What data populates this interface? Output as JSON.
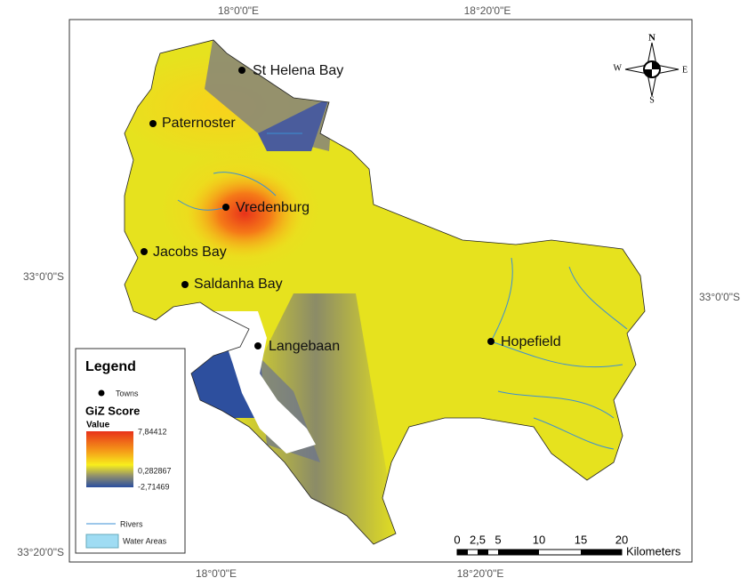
{
  "coordinates": {
    "top": [
      "18°0'0\"E",
      "18°20'0\"E"
    ],
    "bottom": [
      "18°0'0\"E",
      "18°20'0\"E"
    ],
    "left": [
      "33°0'0\"S",
      "33°20'0\"S"
    ],
    "right": [
      "33°0'0\"S"
    ]
  },
  "towns": [
    "St Helena Bay",
    "Paternoster",
    "Vredenburg",
    "Jacobs Bay",
    "Saldanha Bay",
    "Langebaan",
    "Hopefield"
  ],
  "compass": {
    "n": "N",
    "e": "E",
    "s": "S",
    "w": "W"
  },
  "legend": {
    "title": "Legend",
    "towns": "Towns",
    "score_title": "GiZ Score",
    "value": "Value",
    "max": "7,84412",
    "mid": "0,282867",
    "min": "-2,71469",
    "rivers": "Rivers",
    "water": "Water Areas"
  },
  "scale_bar": {
    "labels": [
      "0",
      "2,5",
      "5",
      "10",
      "15",
      "20"
    ],
    "unit": "Kilometers"
  }
}
